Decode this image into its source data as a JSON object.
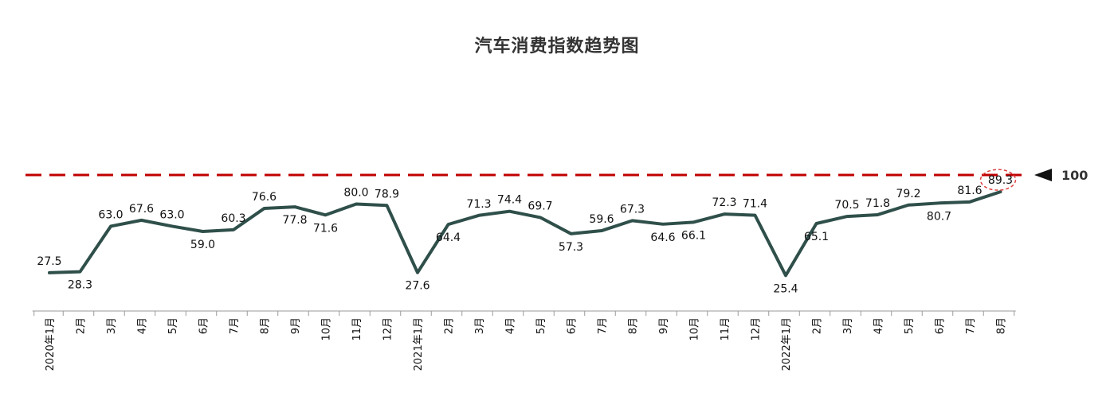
{
  "chart_data": {
    "type": "line",
    "title": "汽车消费指数趋势图",
    "xlabel": "",
    "ylabel": "",
    "categories": [
      "2020年1月",
      "2月",
      "3月",
      "4月",
      "5月",
      "6月",
      "7月",
      "8月",
      "9月",
      "10月",
      "11月",
      "12月",
      "2021年1月",
      "2月",
      "3月",
      "4月",
      "5月",
      "6月",
      "7月",
      "8月",
      "9月",
      "10月",
      "11月",
      "12月",
      "2022年1月",
      "2月",
      "3月",
      "4月",
      "5月",
      "6月",
      "7月",
      "8月"
    ],
    "series": [
      {
        "values": [
          27.5,
          28.3,
          63.0,
          67.6,
          63.0,
          59.0,
          60.3,
          76.6,
          77.8,
          71.6,
          80.0,
          78.9,
          27.6,
          64.4,
          71.3,
          74.4,
          69.7,
          57.3,
          59.6,
          67.3,
          64.6,
          66.1,
          72.3,
          71.4,
          25.4,
          65.1,
          70.5,
          71.8,
          79.2,
          80.7,
          81.6,
          89.3
        ],
        "labels": [
          "27.5",
          "28.3",
          "63.0",
          "67.6",
          "63.0",
          "59.0",
          "60.3",
          "76.6",
          "77.8",
          "71.6",
          "80.0",
          "78.9",
          "27.6",
          "64.4",
          "71.3",
          "74.4",
          "69.7",
          "57.3",
          "59.6",
          "67.3",
          "64.6",
          "66.1",
          "72.3",
          "71.4",
          "25.4",
          "65.1",
          "70.5",
          "71.8",
          "79.2",
          "80.7",
          "81.6",
          "89.3"
        ],
        "label_pos": [
          "above",
          "below",
          "above",
          "above",
          "above",
          "below",
          "above",
          "above",
          "below",
          "below",
          "above",
          "above",
          "below",
          "below",
          "above",
          "above",
          "above",
          "below",
          "above",
          "above",
          "below",
          "below",
          "above",
          "above",
          "below",
          "below",
          "above",
          "above",
          "above",
          "below",
          "above",
          "above"
        ],
        "color": "#2f4f4a"
      }
    ],
    "reference_line": {
      "value": 100,
      "label": "100",
      "color": "#c00000"
    },
    "highlight_index": 31,
    "grid": false,
    "legend": "none"
  }
}
